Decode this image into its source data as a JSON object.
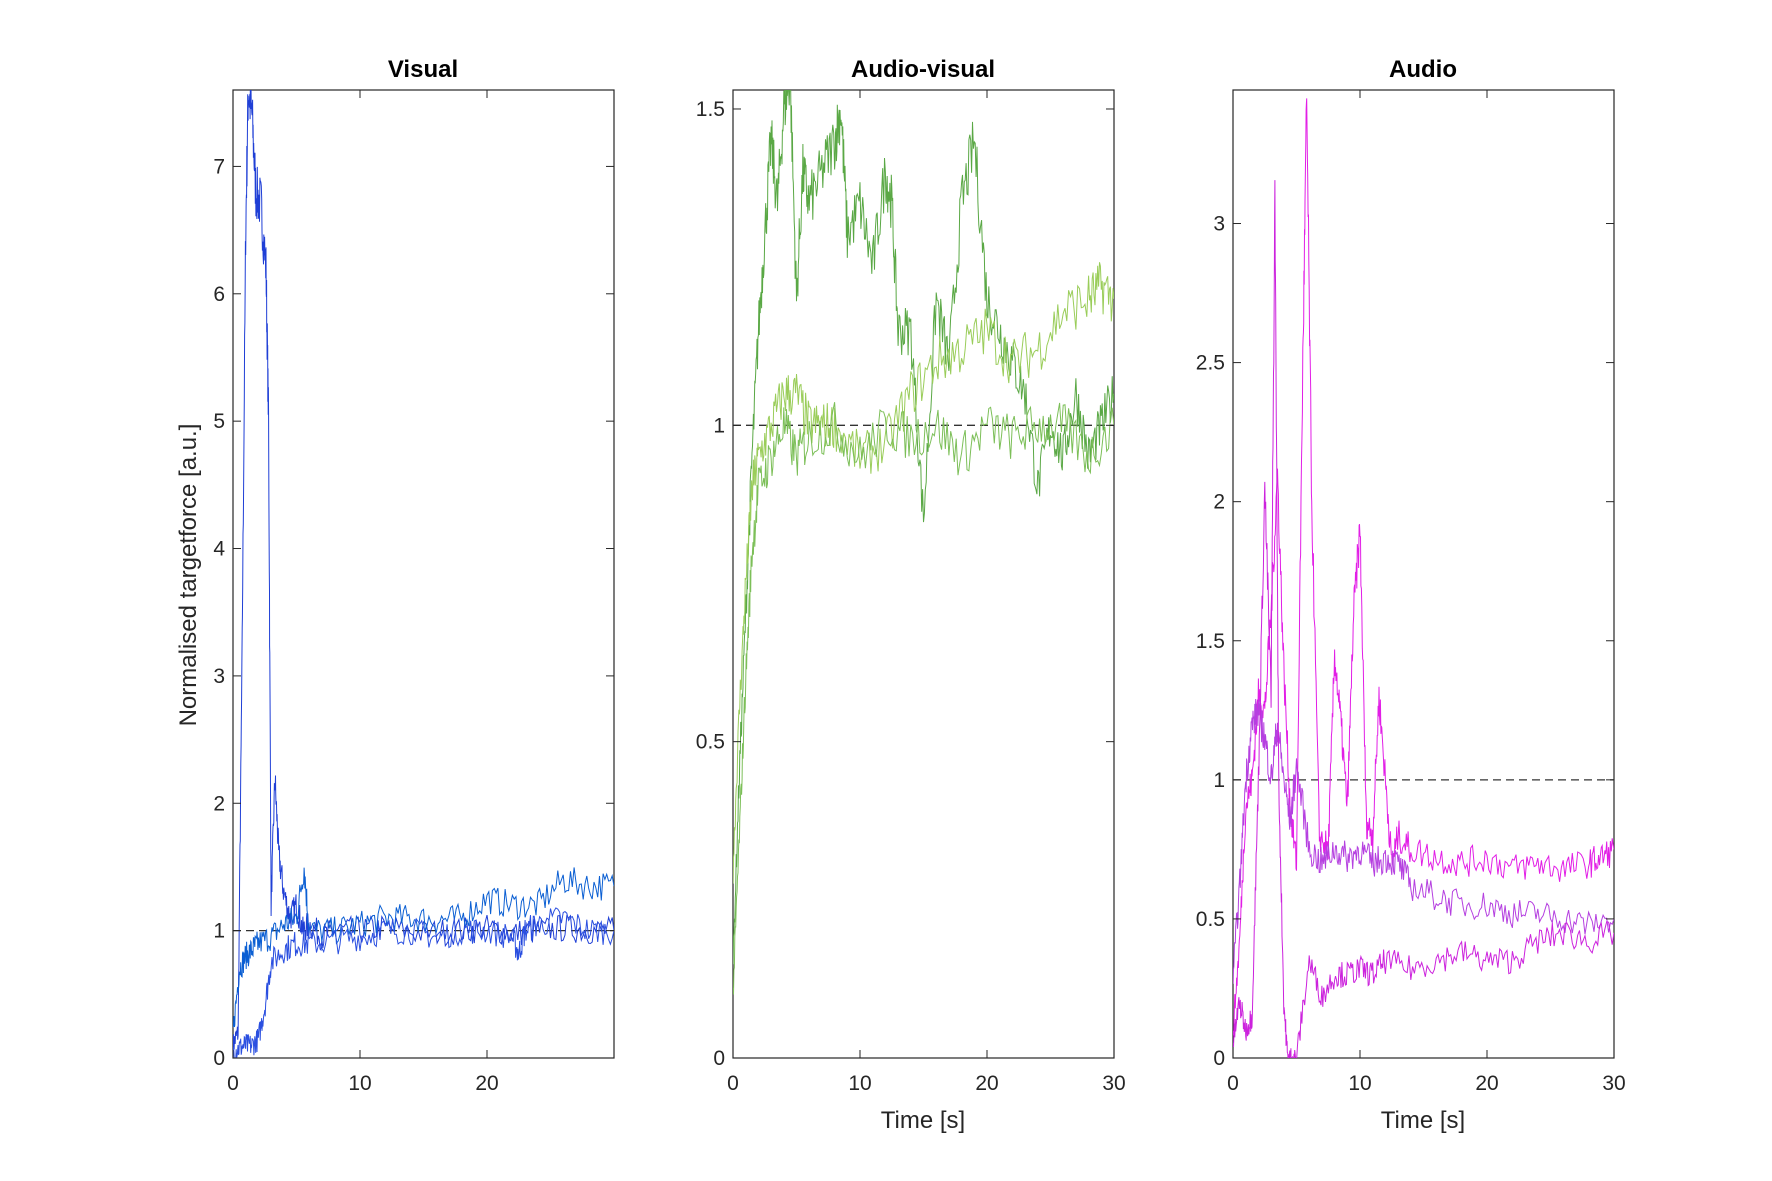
{
  "chart_data": [
    {
      "type": "line",
      "title": "Visual",
      "xlabel": "",
      "ylabel": "Normalised targetforce [a.u.]",
      "xlim": [
        0,
        30
      ],
      "ylim": [
        0,
        7.6
      ],
      "xticks": [
        "0",
        "10",
        "20"
      ],
      "yticks": [
        "0",
        "1",
        "2",
        "3",
        "4",
        "5",
        "6",
        "7"
      ],
      "reference_line": 1,
      "colors": [
        "#1f3fd6",
        "#0b5fd3",
        "#2a4fe0"
      ],
      "series": [
        {
          "x": [
            0,
            0.4,
            0.7,
            1.0,
            1.2,
            1.5,
            1.8,
            2.2,
            2.6,
            2.8,
            3.0,
            3.3,
            3.6,
            4.0,
            4.5,
            5.0,
            5.5,
            6,
            7,
            8,
            10,
            12,
            15,
            18,
            20,
            22,
            24,
            26,
            28,
            30
          ],
          "y": [
            0.1,
            0.2,
            3.0,
            6.5,
            7.6,
            7.4,
            6.8,
            6.7,
            6.2,
            5.0,
            1.2,
            2.2,
            1.6,
            1.3,
            1.1,
            1.2,
            1.0,
            1.05,
            0.95,
            1.0,
            1.0,
            1.02,
            0.98,
            1.0,
            1.02,
            0.98,
            1.0,
            1.02,
            1.0,
            1.0
          ]
        },
        {
          "x": [
            0,
            0.5,
            1.0,
            1.5,
            2.0,
            3.0,
            4.0,
            5.0,
            5.6,
            6,
            8,
            10,
            12,
            14,
            16,
            18,
            20,
            22,
            24,
            26,
            28,
            30
          ],
          "y": [
            0.2,
            0.7,
            0.8,
            0.85,
            0.9,
            0.95,
            1.05,
            1.1,
            1.5,
            1.0,
            1.0,
            1.05,
            1.1,
            1.1,
            1.08,
            1.1,
            1.25,
            1.2,
            1.2,
            1.4,
            1.35,
            1.35
          ]
        },
        {
          "x": [
            0,
            0.5,
            1.0,
            1.5,
            2.0,
            2.5,
            3,
            4,
            5,
            6,
            8,
            10,
            12,
            14,
            16,
            18,
            20,
            22,
            22.5,
            23,
            24,
            26,
            28,
            30
          ],
          "y": [
            0.05,
            0.08,
            0.1,
            0.1,
            0.15,
            0.4,
            0.75,
            0.85,
            0.9,
            0.9,
            0.92,
            0.95,
            1.0,
            1.0,
            0.95,
            1.0,
            1.0,
            0.95,
            0.82,
            1.0,
            1.05,
            1.1,
            1.0,
            1.0
          ]
        }
      ]
    },
    {
      "type": "line",
      "title": "Audio-visual",
      "xlabel": "Time [s]",
      "ylabel": "",
      "xlim": [
        0,
        30
      ],
      "ylim": [
        0,
        1.53
      ],
      "xticks": [
        "0",
        "10",
        "20",
        "30"
      ],
      "yticks": [
        "0",
        "0.5",
        "1",
        "1.5"
      ],
      "reference_line": 1,
      "colors": [
        "#5aa845",
        "#9acd5a",
        "#7cbf58"
      ],
      "series": [
        {
          "x": [
            0,
            0.5,
            1.0,
            1.5,
            2.0,
            2.5,
            3.0,
            3.5,
            4.0,
            4.5,
            5.0,
            5.5,
            6.0,
            7.0,
            8.0,
            8.5,
            9.0,
            10.0,
            11.0,
            12.0,
            12.5,
            13.0,
            14.0,
            15.0,
            16.0,
            17.0,
            18.0,
            19.0,
            20.0,
            21.0,
            22.0,
            23.0,
            24.0,
            25.0,
            26.0,
            27.0,
            28.0,
            29.0,
            30.0
          ],
          "y": [
            0.15,
            0.45,
            0.7,
            0.95,
            1.15,
            1.3,
            1.45,
            1.35,
            1.5,
            1.55,
            1.2,
            1.4,
            1.35,
            1.4,
            1.45,
            1.5,
            1.3,
            1.35,
            1.25,
            1.4,
            1.35,
            1.15,
            1.15,
            0.85,
            1.2,
            1.1,
            1.35,
            1.45,
            1.2,
            1.15,
            1.1,
            1.05,
            0.9,
            1.0,
            0.95,
            1.05,
            0.95,
            1.0,
            1.05
          ]
        },
        {
          "x": [
            0,
            0.5,
            1.0,
            1.5,
            2,
            3,
            4,
            5,
            6,
            7,
            8,
            10,
            12,
            14,
            16,
            18,
            20,
            22,
            24,
            26,
            28,
            29,
            30
          ],
          "y": [
            0.3,
            0.55,
            0.75,
            0.9,
            0.95,
            1.0,
            1.05,
            1.05,
            1.0,
            1.0,
            1.0,
            0.95,
            0.97,
            1.05,
            1.1,
            1.12,
            1.15,
            1.1,
            1.12,
            1.18,
            1.2,
            1.22,
            1.2
          ]
        },
        {
          "x": [
            0,
            0.5,
            1.0,
            1.5,
            2,
            3,
            4,
            5,
            6,
            8,
            10,
            12,
            14,
            16,
            18,
            20,
            22,
            24,
            26,
            28,
            30
          ],
          "y": [
            0.1,
            0.35,
            0.6,
            0.8,
            0.9,
            0.95,
            1.0,
            0.95,
            0.98,
            1.0,
            0.95,
            1.0,
            0.98,
            1.0,
            0.95,
            1.0,
            0.98,
            1.0,
            1.0,
            0.95,
            1.0
          ]
        }
      ]
    },
    {
      "type": "line",
      "title": "Audio",
      "xlabel": "Time [s]",
      "ylabel": "",
      "xlim": [
        0,
        30
      ],
      "ylim": [
        0,
        3.48
      ],
      "xticks": [
        "0",
        "10",
        "20",
        "30"
      ],
      "yticks": [
        "0",
        "0.5",
        "1",
        "1.5",
        "2",
        "2.5",
        "3"
      ],
      "reference_line": 1,
      "colors": [
        "#e21ee6",
        "#b540e0",
        "#cc22dd"
      ],
      "series": [
        {
          "x": [
            0,
            0.5,
            1.0,
            1.5,
            2.0,
            2.5,
            3.0,
            3.5,
            4.0,
            4.5,
            5.0,
            5.5,
            5.8,
            6.2,
            6.8,
            7.5,
            8.0,
            8.5,
            9.0,
            9.5,
            10.0,
            10.5,
            11.0,
            11.5,
            12.0,
            12.5,
            13,
            14,
            16,
            18,
            20,
            22,
            24,
            26,
            28,
            29,
            30
          ],
          "y": [
            0.1,
            0.4,
            0.9,
            1.0,
            1.3,
            1.25,
            1.6,
            2.1,
            1.4,
            0.9,
            0.7,
            2.5,
            3.45,
            2.0,
            0.8,
            0.75,
            1.45,
            1.2,
            0.9,
            1.6,
            1.9,
            0.85,
            0.8,
            1.3,
            1.0,
            0.7,
            0.8,
            0.75,
            0.72,
            0.7,
            0.72,
            0.68,
            0.7,
            0.68,
            0.7,
            0.72,
            0.75
          ]
        },
        {
          "x": [
            0,
            0.5,
            1.0,
            1.5,
            2.0,
            2.5,
            3.0,
            3.5,
            4.0,
            4.5,
            5.0,
            6,
            7,
            8,
            9,
            10,
            11,
            12,
            13,
            14,
            16,
            18,
            20,
            22,
            24,
            26,
            28,
            30
          ],
          "y": [
            0.3,
            0.6,
            1.0,
            1.2,
            1.25,
            1.15,
            1.0,
            1.2,
            1.0,
            0.85,
            1.05,
            0.75,
            0.7,
            0.75,
            0.72,
            0.75,
            0.7,
            0.72,
            0.7,
            0.62,
            0.58,
            0.55,
            0.55,
            0.52,
            0.52,
            0.5,
            0.48,
            0.5
          ]
        },
        {
          "x": [
            0,
            0.5,
            1.0,
            1.5,
            2.0,
            2.5,
            3.0,
            3.3,
            3.6,
            4.0,
            4.3,
            4.6,
            5,
            6,
            7,
            8,
            9,
            10,
            11,
            12,
            14,
            16,
            18,
            20,
            22,
            24,
            26,
            28,
            30
          ],
          "y": [
            0.05,
            0.2,
            0.1,
            0.15,
            1.0,
            2.05,
            1.3,
            3.1,
            1.0,
            0.2,
            0.0,
            0.0,
            0.0,
            0.35,
            0.22,
            0.3,
            0.3,
            0.32,
            0.3,
            0.35,
            0.32,
            0.35,
            0.38,
            0.35,
            0.35,
            0.42,
            0.45,
            0.42,
            0.45
          ]
        }
      ]
    }
  ]
}
